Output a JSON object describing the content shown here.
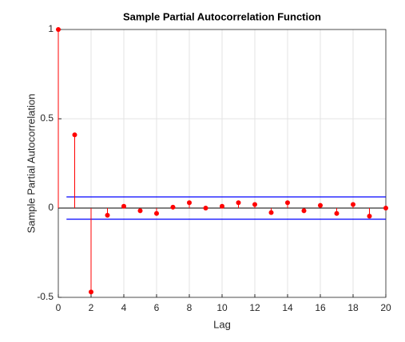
{
  "chart_data": {
    "type": "stem",
    "title": "Sample Partial Autocorrelation Function",
    "x_label": "Lag",
    "y_label": "Sample Partial Autocorrelation",
    "x": [
      0,
      1,
      2,
      3,
      4,
      5,
      6,
      7,
      8,
      9,
      10,
      11,
      12,
      13,
      14,
      15,
      16,
      17,
      18,
      19,
      20
    ],
    "values": [
      1,
      0.41,
      -0.47,
      -0.04,
      0.01,
      -0.015,
      -0.03,
      0.005,
      0.03,
      0,
      0.01,
      0.03,
      0.02,
      -0.025,
      0.03,
      -0.015,
      0.015,
      -0.03,
      0.02,
      -0.045,
      0
    ],
    "color": "#ff0000",
    "bounds": [
      0.0625,
      -0.0625
    ],
    "bounds_color": "#0000ff",
    "xlim": [
      0,
      20
    ],
    "ylim": [
      -0.5,
      1
    ],
    "xticks": [
      0,
      2,
      4,
      6,
      8,
      10,
      12,
      14,
      16,
      18,
      20
    ],
    "yticks": [
      -0.5,
      0,
      0.5,
      1
    ],
    "grid": true
  }
}
